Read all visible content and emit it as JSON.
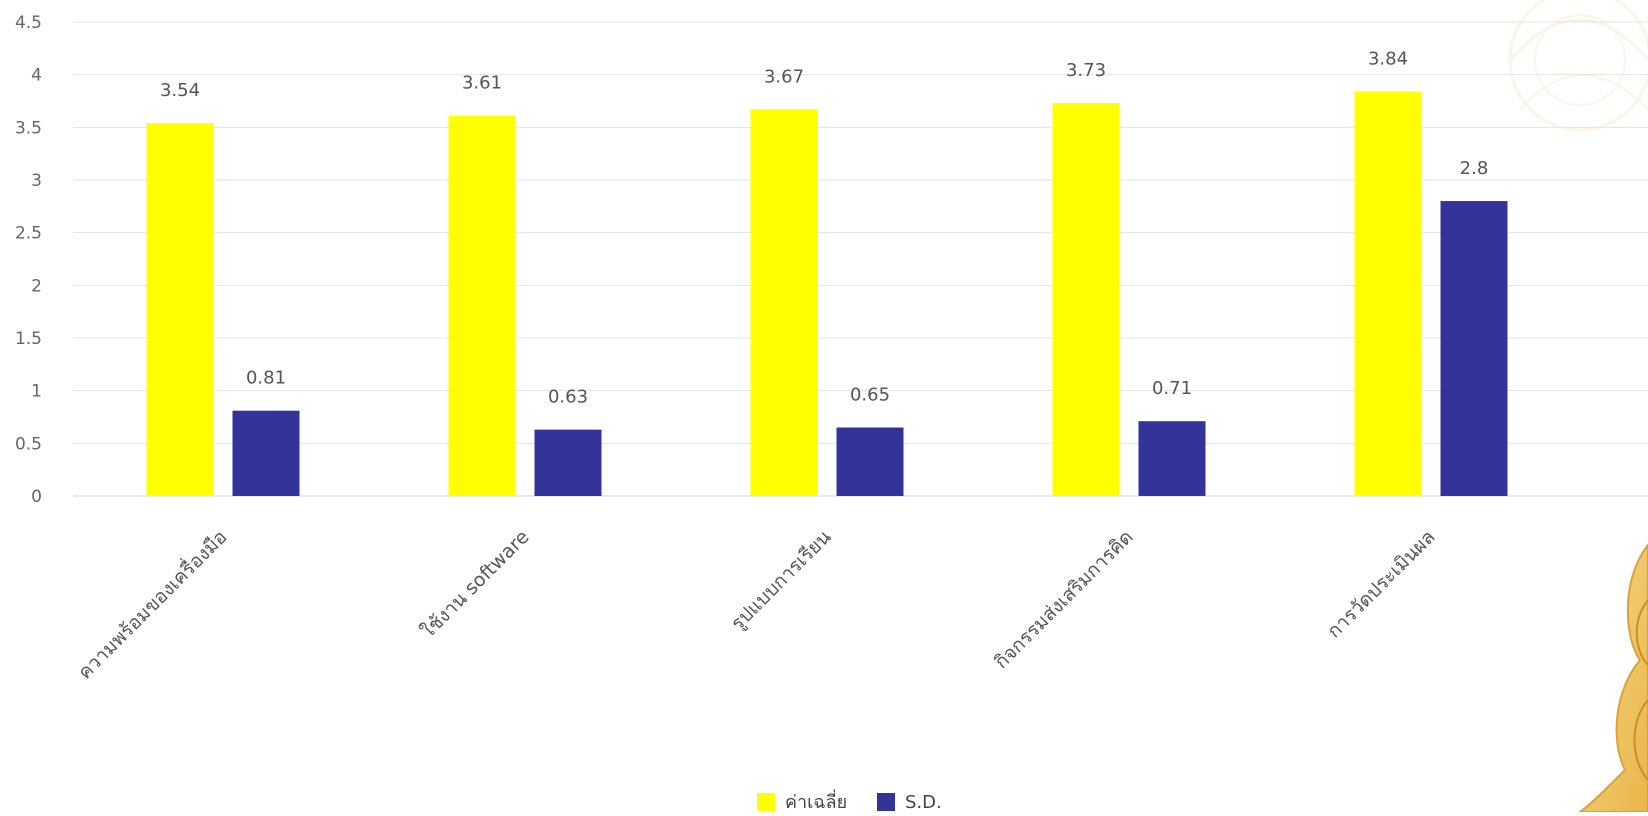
{
  "chart_data": {
    "type": "bar",
    "categories": [
      "ความพร้อมของเครื่องมือ",
      "ใช้งาน software",
      "รูปแบบการเรียน",
      "กิจกรรมส่งเสริมการคิด",
      "การวัดประเมินผล"
    ],
    "series": [
      {
        "name": "ค่าเฉลี่ย",
        "values": [
          3.54,
          3.61,
          3.67,
          3.73,
          3.84
        ],
        "color": "#ffff00"
      },
      {
        "name": "S.D.",
        "values": [
          0.81,
          0.63,
          0.65,
          0.71,
          2.8
        ],
        "color": "#333399"
      }
    ],
    "value_labels": [
      [
        "3.54",
        "3.61",
        "3.67",
        "3.73",
        "3.84"
      ],
      [
        "0.81",
        "0.63",
        "0.65",
        "0.71",
        "2.8"
      ]
    ],
    "y_ticks": [
      "0",
      "0.5",
      "1",
      "1.5",
      "2",
      "2.5",
      "3",
      "3.5",
      "4",
      "4.5"
    ],
    "ylim": [
      0,
      4.5
    ],
    "grid": true,
    "legend": "bottom-center",
    "title": "",
    "xlabel": "",
    "ylabel": ""
  }
}
